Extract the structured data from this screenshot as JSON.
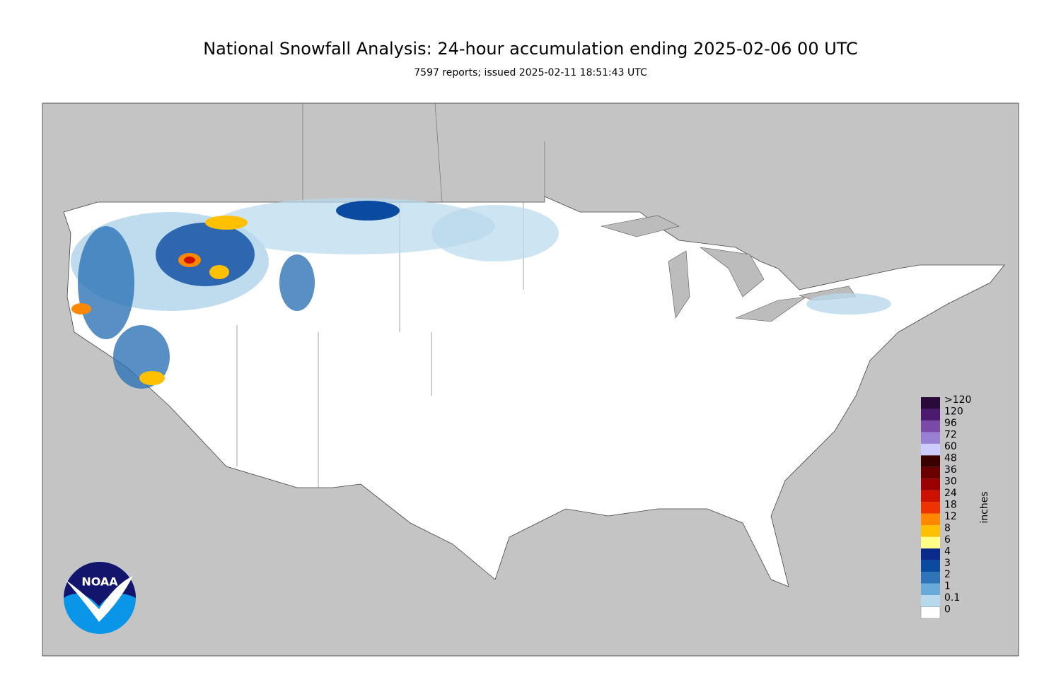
{
  "header": {
    "title": "National Snowfall Analysis: 24-hour accumulation ending 2025-02-06 00 UTC",
    "subtitle": "7597 reports; issued 2025-02-11 18:51:43 UTC"
  },
  "logo": {
    "text": "NOAA"
  },
  "legend": {
    "unit": "inches",
    "entries": [
      {
        "label": ">120",
        "color": "#2a0a3a"
      },
      {
        "label": "120",
        "color": "#4b1a6e"
      },
      {
        "label": "96",
        "color": "#7a4aa8"
      },
      {
        "label": "72",
        "color": "#9a80d2"
      },
      {
        "label": "60",
        "color": "#ccccff"
      },
      {
        "label": "48",
        "color": "#3a0000"
      },
      {
        "label": "36",
        "color": "#6a0000"
      },
      {
        "label": "30",
        "color": "#9a0000"
      },
      {
        "label": "24",
        "color": "#cc1100"
      },
      {
        "label": "18",
        "color": "#ee3300"
      },
      {
        "label": "12",
        "color": "#ff8800"
      },
      {
        "label": "8",
        "color": "#ffc000"
      },
      {
        "label": "6",
        "color": "#ffff88"
      },
      {
        "label": "4",
        "color": "#0a2a8c"
      },
      {
        "label": "3",
        "color": "#0a4aa0"
      },
      {
        "label": "2",
        "color": "#2e74b8"
      },
      {
        "label": "1",
        "color": "#6aaad8"
      },
      {
        "label": "0.1",
        "color": "#b8d8ec"
      },
      {
        "label": "0",
        "color": "#ffffff"
      }
    ]
  }
}
